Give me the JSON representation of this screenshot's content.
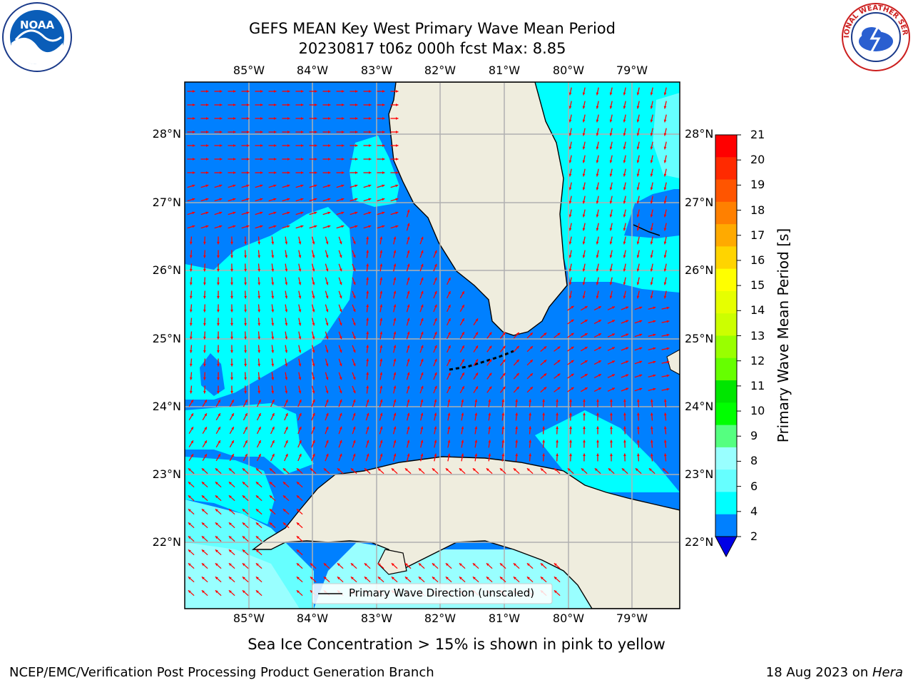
{
  "title": {
    "line1": "GEFS MEAN Key West Primary Wave Mean Period",
    "line2": "20230817 t06z 000h fcst   Max: 8.85"
  },
  "map": {
    "lon_ticks": [
      "85°W",
      "84°W",
      "83°W",
      "82°W",
      "81°W",
      "80°W",
      "79°W"
    ],
    "lat_ticks": [
      "28°N",
      "27°N",
      "26°N",
      "25°N",
      "24°N",
      "23°N",
      "22°N"
    ],
    "legend_label": "Primary Wave Direction (unscaled)",
    "colors": {
      "ocean_2_4": "#0080ff",
      "ocean_4_6": "#00ffff",
      "ocean_6_8": "#66ffff",
      "ocean_8_9": "#99ffff",
      "deep_0_2": "#0000e6",
      "land": "#efedde",
      "arrows": "#ff0000",
      "grid": "#b0b0b0"
    }
  },
  "colorbar": {
    "label": "Primary Wave Mean Period [s]",
    "ticks": [
      "21",
      "20",
      "19",
      "18",
      "17",
      "16",
      "15",
      "14",
      "13",
      "12",
      "11",
      "10",
      "9",
      "8",
      "6",
      "4",
      "2"
    ],
    "bands": [
      "#ff0000",
      "#ff2a00",
      "#ff5500",
      "#ff8000",
      "#ffaa00",
      "#ffd400",
      "#ffff00",
      "#e6ff00",
      "#ccff00",
      "#99ff00",
      "#66ff00",
      "#00e600",
      "#00ff00",
      "#55ff80",
      "#99ffff",
      "#66ffff",
      "#00ffff",
      "#0080ff"
    ],
    "extend_color": "#0000e6"
  },
  "subtitle": "Sea Ice Concentration > 15% is shown in pink to yellow",
  "footer": {
    "left": "NCEP/EMC/Verification Post Processing Product Generation Branch",
    "date": "18 Aug 2023 on ",
    "host": "Hera"
  },
  "logos": {
    "noaa_text": "NOAA",
    "nws_text": "NATIONAL WEATHER SERVICE"
  }
}
